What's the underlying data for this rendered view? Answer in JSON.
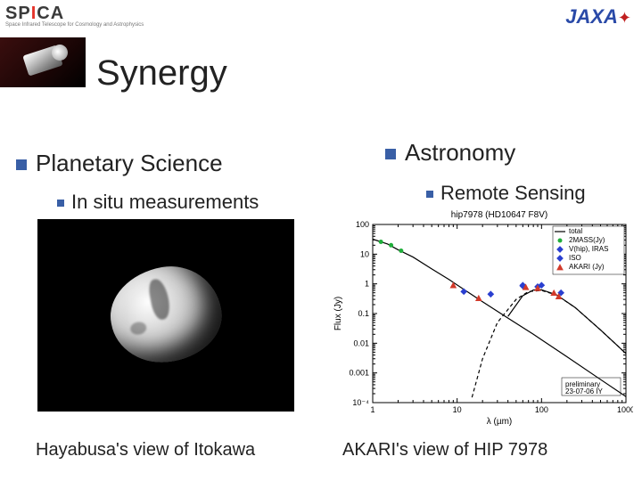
{
  "header": {
    "logo_left_main": "SPICA",
    "logo_left_sub": "Space Infrared Telescope for Cosmology and Astrophysics",
    "logo_right": "JAXA"
  },
  "title": "Synergy",
  "left": {
    "heading": "Planetary Science",
    "sub": "In situ measurements",
    "caption": "Hayabusa's view of Itokawa"
  },
  "right": {
    "heading": "Astronomy",
    "sub": "Remote Sensing",
    "caption": "AKARI's view of HIP 7978"
  },
  "chart": {
    "type": "scatter+line",
    "title": "hip7978 (HD10647 F8V)",
    "xlabel": "λ (µm)",
    "ylabel": "Flux (Jy)",
    "xlim": [
      1,
      1000
    ],
    "ylim": [
      0.0001,
      100
    ],
    "xticks": [
      1,
      10,
      100,
      1000
    ],
    "yticks": [
      0.0001,
      0.001,
      0.01,
      0.1,
      1,
      10,
      100
    ],
    "ytick_labels": [
      "10⁻⁴",
      "0.001",
      "0.01",
      "0.1",
      "1",
      "10",
      "100"
    ],
    "xscale": "log",
    "yscale": "log",
    "background_color": "#ffffff",
    "border_color": "#000000",
    "tick_fontsize": 9,
    "label_fontsize": 10,
    "title_fontsize": 10,
    "stellar_curve": {
      "color": "#000000",
      "width": 1.2,
      "dash": "none",
      "points": [
        [
          1,
          32
        ],
        [
          1.5,
          22
        ],
        [
          2,
          14
        ],
        [
          3,
          8
        ],
        [
          5,
          3.2
        ],
        [
          8,
          1.4
        ],
        [
          12,
          0.65
        ],
        [
          20,
          0.25
        ],
        [
          40,
          0.07
        ],
        [
          80,
          0.02
        ],
        [
          200,
          0.0035
        ],
        [
          500,
          0.0006
        ],
        [
          1000,
          0.00016
        ]
      ]
    },
    "excess_curve": {
      "color": "#000000",
      "width": 1.2,
      "dash": "4 3",
      "points": [
        [
          15,
          0.00015
        ],
        [
          20,
          0.003
        ],
        [
          30,
          0.05
        ],
        [
          50,
          0.3
        ],
        [
          70,
          0.55
        ],
        [
          100,
          0.6
        ],
        [
          150,
          0.42
        ],
        [
          250,
          0.16
        ],
        [
          500,
          0.028
        ],
        [
          1000,
          0.0045
        ]
      ]
    },
    "total_curve": {
      "color": "#000000",
      "width": 1.2,
      "dash": "none",
      "points": [
        [
          40,
          0.08
        ],
        [
          60,
          0.4
        ],
        [
          80,
          0.62
        ],
        [
          100,
          0.63
        ],
        [
          150,
          0.43
        ],
        [
          250,
          0.16
        ],
        [
          500,
          0.028
        ],
        [
          1000,
          0.0045
        ]
      ]
    },
    "series": [
      {
        "name": "2MASS(Jy)",
        "marker": "circle",
        "color": "#1fae3a",
        "size": 5,
        "points": [
          [
            1.25,
            26
          ],
          [
            1.65,
            20
          ],
          [
            2.17,
            13
          ]
        ]
      },
      {
        "name": "V(hip), IRAS",
        "marker": "diamond",
        "color": "#2a3fd0",
        "size": 5,
        "points": [
          [
            12,
            0.55
          ],
          [
            25,
            0.45
          ],
          [
            60,
            0.9
          ],
          [
            100,
            0.9
          ]
        ]
      },
      {
        "name": "ISO",
        "marker": "diamond",
        "color": "#2a3fd0",
        "size": 5,
        "points": [
          [
            60,
            0.85
          ],
          [
            90,
            0.8
          ],
          [
            170,
            0.5
          ]
        ]
      },
      {
        "name": "AKARI (Jy)",
        "marker": "triangle",
        "color": "#d23a2a",
        "size": 5,
        "points": [
          [
            9,
            0.9
          ],
          [
            18,
            0.33
          ],
          [
            65,
            0.78
          ],
          [
            90,
            0.72
          ],
          [
            140,
            0.5
          ],
          [
            160,
            0.38
          ]
        ]
      }
    ],
    "legend": {
      "position": "upper-right",
      "items": [
        {
          "label": "total",
          "marker": "line",
          "color": "#000000"
        },
        {
          "label": "2MASS(Jy)",
          "marker": "circle",
          "color": "#1fae3a"
        },
        {
          "label": "V(hip), IRAS",
          "marker": "diamond",
          "color": "#2a3fd0"
        },
        {
          "label": "ISO",
          "marker": "diamond",
          "color": "#2a3fd0"
        },
        {
          "label": "AKARI (Jy)",
          "marker": "triangle",
          "color": "#d23a2a"
        }
      ]
    },
    "note": "preliminary",
    "note_sub": "23-07-06 IY"
  }
}
